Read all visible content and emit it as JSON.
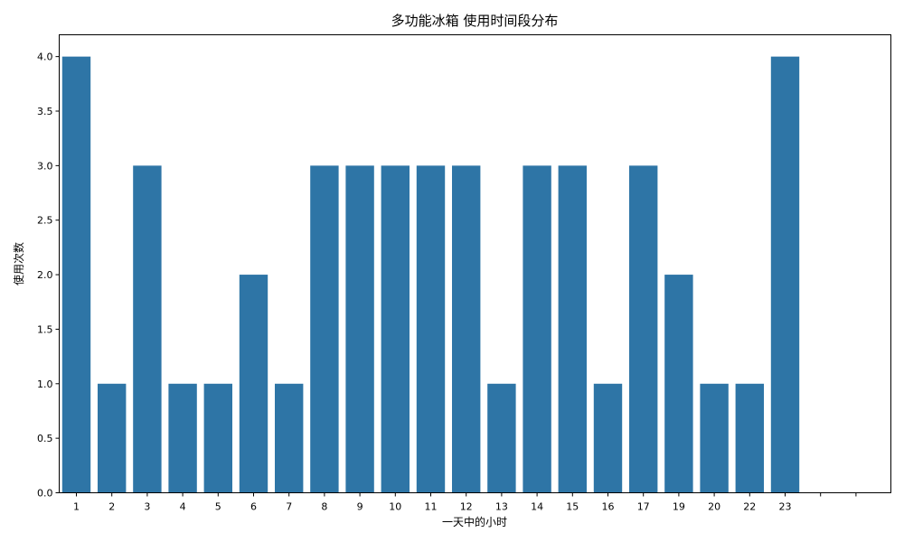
{
  "chart_data": {
    "type": "bar",
    "title": "多功能冰箱 使用时间段分布",
    "xlabel": "一天中的小时",
    "ylabel": "使用次数",
    "categories": [
      "1",
      "2",
      "3",
      "4",
      "5",
      "6",
      "7",
      "8",
      "9",
      "10",
      "11",
      "12",
      "13",
      "14",
      "15",
      "16",
      "17",
      "19",
      "20",
      "22",
      "23"
    ],
    "values": [
      4,
      1,
      3,
      1,
      1,
      2,
      1,
      3,
      3,
      3,
      3,
      3,
      1,
      3,
      3,
      1,
      3,
      2,
      1,
      1,
      4
    ],
    "extra_empty_ticks": 2,
    "ylim": [
      0,
      4.2
    ],
    "yticks": [
      0.0,
      0.5,
      1.0,
      1.5,
      2.0,
      2.5,
      3.0,
      3.5,
      4.0
    ],
    "ytick_labels": [
      "0.0",
      "0.5",
      "1.0",
      "1.5",
      "2.0",
      "2.5",
      "3.0",
      "3.5",
      "4.0"
    ],
    "bar_color": "#2e75a6",
    "grid": false,
    "legend": "none"
  }
}
